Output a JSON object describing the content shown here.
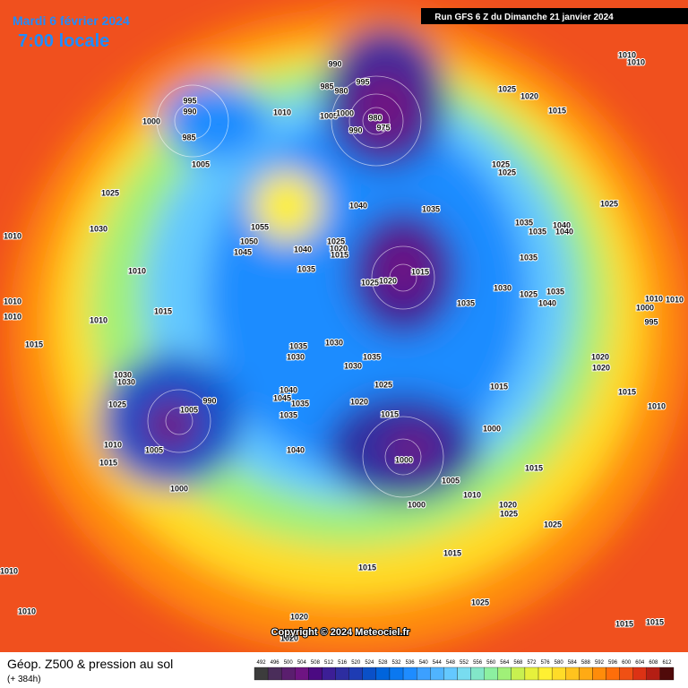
{
  "header": {
    "date": "Mardi 6 février 2024",
    "time": "7:00 locale",
    "run": "Run GFS 6 Z du Dimanche 21 janvier 2024"
  },
  "map": {
    "copyright": "Copyright © 2024 Meteociel.fr",
    "pressure_labels": [
      1010,
      1010,
      990,
      985,
      980,
      995,
      1025,
      1020,
      1015,
      995,
      990,
      1000,
      985,
      1010,
      1005,
      1000,
      980,
      975,
      990,
      1005,
      1025,
      1025,
      1025,
      1025,
      1040,
      1035,
      1055,
      1035,
      1040,
      1035,
      1040,
      1010,
      1030,
      1050,
      1025,
      1020,
      1015,
      1045,
      1040,
      1035,
      1010,
      1035,
      1015,
      1025,
      1020,
      1030,
      1025,
      1035,
      1040,
      1010,
      1035,
      1015,
      1010,
      1000,
      1010,
      1010,
      1010,
      995,
      1015,
      1035,
      1030,
      1030,
      1035,
      1030,
      1020,
      1020,
      1030,
      1030,
      1025,
      1015,
      1040,
      1045,
      1015,
      1035,
      1020,
      990,
      1005,
      1025,
      1035,
      1015,
      1010,
      1000,
      1010,
      1005,
      1040,
      1000,
      1015,
      1015,
      1005,
      1010,
      1000,
      1000,
      1020,
      1025,
      1025,
      1015,
      1015,
      1010,
      1010,
      1025,
      1020,
      1015,
      1015,
      1020
    ]
  },
  "footer": {
    "title": "Géop. Z500 & pression au sol",
    "lead": "(+ 384h)"
  },
  "colorbar": {
    "values": [
      492,
      496,
      500,
      504,
      508,
      512,
      516,
      520,
      524,
      528,
      532,
      536,
      540,
      544,
      548,
      552,
      556,
      560,
      564,
      568,
      572,
      576,
      580,
      584,
      588,
      592,
      596,
      600,
      604,
      608,
      612
    ],
    "colors": [
      "#3c3c3c",
      "#4a2d5a",
      "#5a1e6e",
      "#6e1482",
      "#4b0a82",
      "#3c1e96",
      "#2d2da0",
      "#1e3cb4",
      "#0a50c8",
      "#0064dc",
      "#0a78f0",
      "#1e8cff",
      "#3ca0ff",
      "#50b4ff",
      "#64c8ff",
      "#78dcf0",
      "#82e6c8",
      "#8cf0a0",
      "#a0f078",
      "#c8f050",
      "#e6f03c",
      "#fff032",
      "#ffdc28",
      "#ffc31e",
      "#ffaa14",
      "#ff8c0a",
      "#ff6e0a",
      "#f05014",
      "#dc3214",
      "#b41e14",
      "#500a0a"
    ]
  }
}
